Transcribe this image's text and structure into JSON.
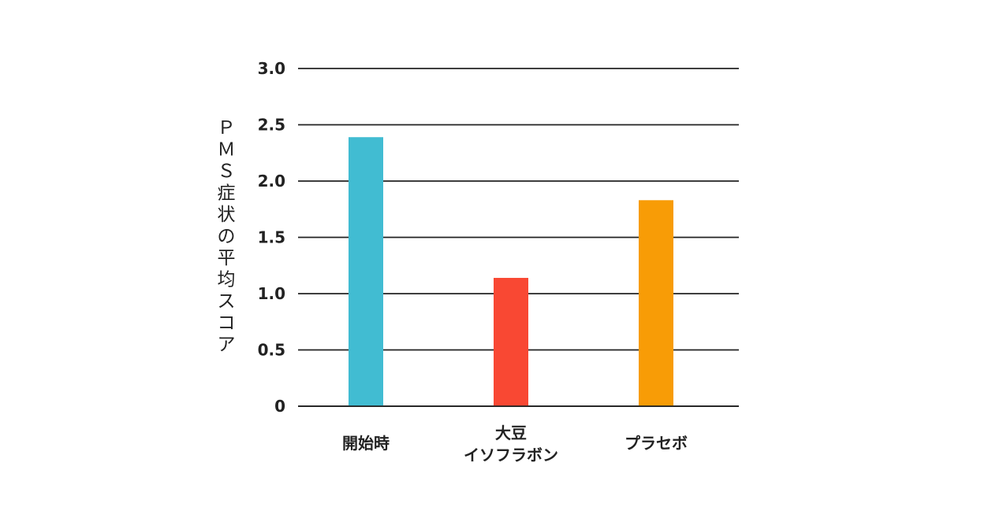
{
  "chart_data": {
    "type": "bar",
    "categories": [
      [
        "開始時"
      ],
      [
        "大豆",
        "イソフラボン"
      ],
      [
        "プラセボ"
      ]
    ],
    "values": [
      2.39,
      1.14,
      1.83
    ],
    "colors": [
      "#41bcd2",
      "#f94833",
      "#f89c06"
    ],
    "ylabel": "ＰＭＳ症状の平均スコア",
    "ylim": [
      0,
      3.0
    ],
    "yticks": [
      {
        "value": 0,
        "label": "0"
      },
      {
        "value": 0.5,
        "label": "0.5"
      },
      {
        "value": 1.0,
        "label": "1.0"
      },
      {
        "value": 1.5,
        "label": "1.5"
      },
      {
        "value": 2.0,
        "label": "2.0"
      },
      {
        "value": 2.5,
        "label": "2.5"
      },
      {
        "value": 3.0,
        "label": "3.0"
      }
    ],
    "grid": true,
    "gridColor": "#222222"
  }
}
